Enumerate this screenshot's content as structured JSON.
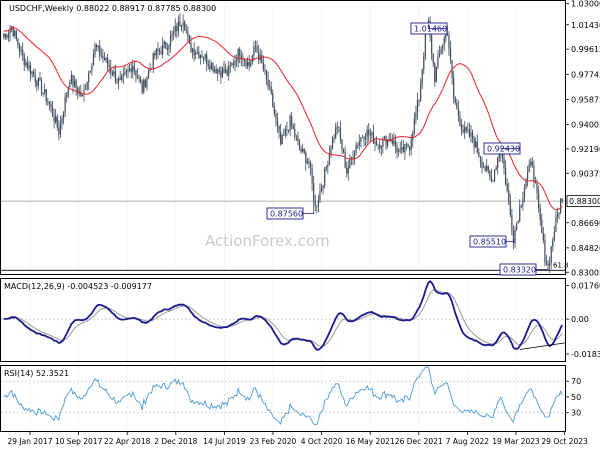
{
  "chart_data": {
    "type": "candlestick",
    "symbol_line": "USDCHF,Weekly  0.88022 0.88917 0.87785 0.88300",
    "watermark": "ActionForex.com",
    "x_ticks": [
      "29 Jan 2017",
      "10 Sep 2017",
      "22 Apr 2018",
      "2 Dec 2018",
      "14 Jul 2019",
      "23 Feb 2020",
      "4 Oct 2020",
      "16 May 2021",
      "26 Dec 2021",
      "7 Aug 2022",
      "19 Mar 2023",
      "29 Oct 2023"
    ],
    "main": {
      "ylim": [
        0.8295,
        1.032
      ],
      "y_ticks": [
        "1.03000",
        "1.01430",
        "0.99615",
        "0.97745",
        "0.95875",
        "0.94005",
        "0.92190",
        "0.90375",
        "0.88300",
        "0.86690",
        "0.84820",
        "0.83005"
      ],
      "price_ticks": [
        1.03,
        1.0143,
        0.99615,
        0.97745,
        0.95875,
        0.94005,
        0.9219,
        0.90375,
        0.883,
        0.8669,
        0.8482,
        0.83005
      ],
      "current_price": 0.883,
      "current_price_label": "0.88300",
      "fib_label": "61.8",
      "fib_level": 0.8315,
      "annotations": [
        {
          "label": "1.01460",
          "week": 270,
          "price": 1.0146
        },
        {
          "label": "0.92430",
          "week": 316,
          "price": 0.9243
        },
        {
          "label": "0.87560",
          "week": 197,
          "price": 0.8756
        },
        {
          "label": "0.85510",
          "week": 324,
          "price": 0.8551
        },
        {
          "label": "0.83320",
          "week": 346,
          "price": 0.8332
        }
      ],
      "anchors": [
        [
          0,
          1.005
        ],
        [
          5,
          1.013
        ],
        [
          12,
          0.99
        ],
        [
          20,
          0.975
        ],
        [
          28,
          0.958
        ],
        [
          35,
          0.935
        ],
        [
          42,
          0.975
        ],
        [
          50,
          0.96
        ],
        [
          58,
          0.998
        ],
        [
          66,
          0.985
        ],
        [
          74,
          0.97
        ],
        [
          82,
          0.985
        ],
        [
          88,
          0.966
        ],
        [
          96,
          0.992
        ],
        [
          104,
          1.0
        ],
        [
          110,
          1.012
        ],
        [
          114,
          1.02
        ],
        [
          118,
          0.998
        ],
        [
          126,
          0.992
        ],
        [
          134,
          0.982
        ],
        [
          142,
          0.978
        ],
        [
          150,
          0.995
        ],
        [
          156,
          0.984
        ],
        [
          160,
          0.998
        ],
        [
          164,
          0.985
        ],
        [
          170,
          0.96
        ],
        [
          176,
          0.925
        ],
        [
          182,
          0.942
        ],
        [
          188,
          0.922
        ],
        [
          194,
          0.912
        ],
        [
          198,
          0.878
        ],
        [
          204,
          0.903
        ],
        [
          208,
          0.925
        ],
        [
          212,
          0.94
        ],
        [
          218,
          0.905
        ],
        [
          224,
          0.925
        ],
        [
          230,
          0.935
        ],
        [
          238,
          0.926
        ],
        [
          246,
          0.93
        ],
        [
          252,
          0.918
        ],
        [
          258,
          0.925
        ],
        [
          264,
          0.96
        ],
        [
          268,
          1.005
        ],
        [
          270,
          1.0146
        ],
        [
          274,
          0.975
        ],
        [
          278,
          0.998
        ],
        [
          282,
          1.01
        ],
        [
          286,
          0.96
        ],
        [
          292,
          0.935
        ],
        [
          298,
          0.93
        ],
        [
          304,
          0.912
        ],
        [
          310,
          0.898
        ],
        [
          316,
          0.924
        ],
        [
          320,
          0.89
        ],
        [
          324,
          0.856
        ],
        [
          328,
          0.878
        ],
        [
          332,
          0.9
        ],
        [
          336,
          0.912
        ],
        [
          340,
          0.875
        ],
        [
          344,
          0.842
        ],
        [
          346,
          0.834
        ],
        [
          350,
          0.862
        ],
        [
          354,
          0.883
        ]
      ]
    },
    "macd": {
      "label": "MACD(12,26,9) -0.004523 -0.009177",
      "y_ticks": [
        "0.017603",
        "0.00",
        "-0.01834"
      ],
      "ylim": [
        -0.0215,
        0.02
      ],
      "tick_values": [
        0.017603,
        0.0,
        -0.01834
      ]
    },
    "rsi": {
      "label": "RSI(14) 52.3521",
      "y_ticks": [
        "70",
        "50",
        "30"
      ],
      "ylim": [
        8,
        88
      ],
      "tick_values": [
        70,
        50,
        30
      ]
    }
  }
}
